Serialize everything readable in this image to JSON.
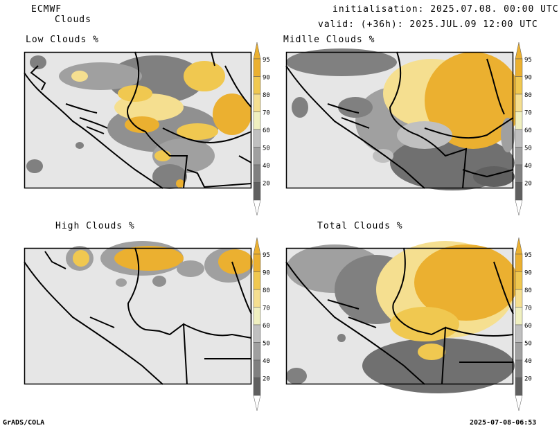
{
  "header": {
    "model": "ECMWF",
    "product": "Clouds",
    "init_line": "initialisation: 2025.07.08. 00:00 UTC",
    "valid_line": "valid: (+36h): 2025.JUL.09 12:00 UTC"
  },
  "panels": [
    {
      "id": "low",
      "title": "Low Clouds %"
    },
    {
      "id": "middle",
      "title": "Midlle Clouds %"
    },
    {
      "id": "high",
      "title": "High Clouds %"
    },
    {
      "id": "total",
      "title": "Total Clouds %"
    }
  ],
  "colorbar": {
    "labels": [
      "95",
      "90",
      "80",
      "70",
      "60",
      "50",
      "40",
      "20"
    ],
    "colors": {
      "20": "#606060",
      "40": "#808080",
      "50": "#a0a0a0",
      "60": "#c0c0c0",
      "70": "#f0f0c0",
      "80": "#f5df90",
      "90": "#f0c850",
      "95": "#ebb030",
      "background": "#e6e6e6"
    }
  },
  "footer": {
    "left": "GrADS/COLA",
    "right": "2025-07-08-06:53"
  }
}
